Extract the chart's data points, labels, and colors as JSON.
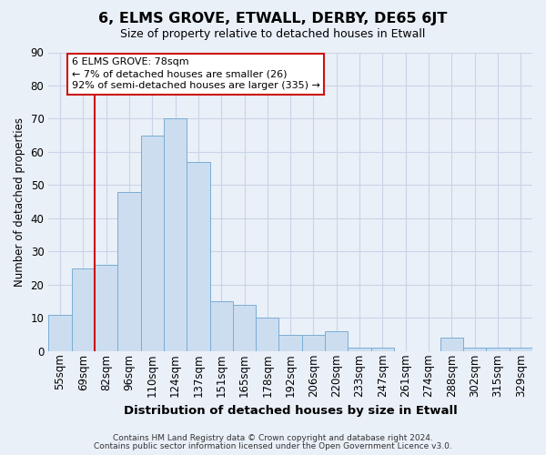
{
  "title": "6, ELMS GROVE, ETWALL, DERBY, DE65 6JT",
  "subtitle": "Size of property relative to detached houses in Etwall",
  "xlabel": "Distribution of detached houses by size in Etwall",
  "ylabel": "Number of detached properties",
  "bar_labels": [
    "55sqm",
    "69sqm",
    "82sqm",
    "96sqm",
    "110sqm",
    "124sqm",
    "137sqm",
    "151sqm",
    "165sqm",
    "178sqm",
    "192sqm",
    "206sqm",
    "220sqm",
    "233sqm",
    "247sqm",
    "261sqm",
    "274sqm",
    "288sqm",
    "302sqm",
    "315sqm",
    "329sqm"
  ],
  "bar_values": [
    11,
    25,
    26,
    48,
    65,
    70,
    57,
    15,
    14,
    10,
    5,
    5,
    6,
    1,
    1,
    0,
    0,
    4,
    1,
    1,
    1
  ],
  "bar_color": "#ccddf0",
  "bar_edge_color": "#7aadd4",
  "grid_color": "#c8d4e6",
  "background_color": "#eaf0f8",
  "vline_x": 2,
  "vline_color": "#cc1111",
  "annotation_text": "6 ELMS GROVE: 78sqm\n← 7% of detached houses are smaller (26)\n92% of semi-detached houses are larger (335) →",
  "annotation_box_color": "#ffffff",
  "annotation_box_edge": "#cc1111",
  "ylim": [
    0,
    90
  ],
  "yticks": [
    0,
    10,
    20,
    30,
    40,
    50,
    60,
    70,
    80,
    90
  ],
  "footer_line1": "Contains HM Land Registry data © Crown copyright and database right 2024.",
  "footer_line2": "Contains public sector information licensed under the Open Government Licence v3.0."
}
